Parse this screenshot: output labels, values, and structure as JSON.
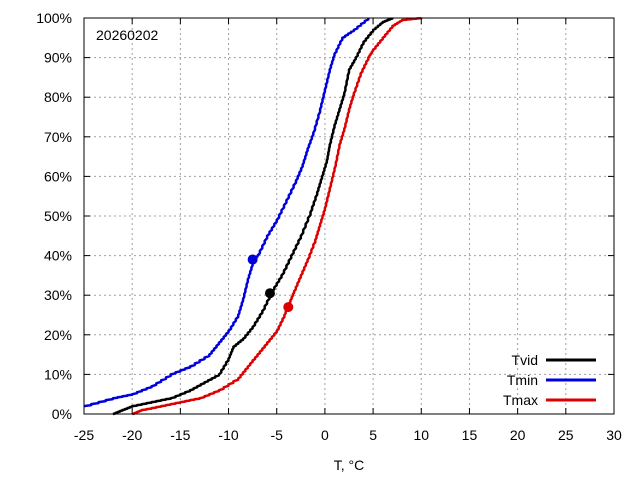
{
  "chart_data": {
    "type": "line",
    "annotation": "20260202",
    "xlabel": "T, °C",
    "ylabel": "",
    "xlim": [
      -25,
      30
    ],
    "ylim": [
      0,
      100
    ],
    "xticks": [
      "-25",
      "-20",
      "-15",
      "-10",
      "-5",
      "0",
      "5",
      "10",
      "15",
      "20",
      "25",
      "30"
    ],
    "yticks": [
      "0%",
      "10%",
      "20%",
      "30%",
      "40%",
      "50%",
      "60%",
      "70%",
      "80%",
      "90%",
      "100%"
    ],
    "grid": true,
    "legend_position": "bottom-right",
    "series": [
      {
        "name": "Tvid",
        "color": "#000000",
        "points": [
          [
            -22,
            0
          ],
          [
            -21,
            1
          ],
          [
            -20,
            2
          ],
          [
            -18,
            3
          ],
          [
            -16,
            4
          ],
          [
            -14,
            6
          ],
          [
            -12.5,
            8
          ],
          [
            -11,
            10
          ],
          [
            -10,
            14
          ],
          [
            -9.5,
            17
          ],
          [
            -8.5,
            19
          ],
          [
            -7.5,
            22
          ],
          [
            -6.5,
            26
          ],
          [
            -5.5,
            31
          ],
          [
            -4.5,
            35
          ],
          [
            -3.5,
            40
          ],
          [
            -2.5,
            45
          ],
          [
            -1.5,
            51
          ],
          [
            -0.8,
            56
          ],
          [
            -0.3,
            60
          ],
          [
            0.2,
            64
          ],
          [
            0.5,
            68
          ],
          [
            1,
            73
          ],
          [
            1.5,
            77
          ],
          [
            2,
            81
          ],
          [
            2.5,
            87
          ],
          [
            3.2,
            90
          ],
          [
            4,
            94
          ],
          [
            5,
            97
          ],
          [
            6,
            99
          ],
          [
            7,
            100
          ]
        ],
        "marker": [
          -5.7,
          30.5
        ]
      },
      {
        "name": "Tmin",
        "color": "#0000dd",
        "points": [
          [
            -25,
            2
          ],
          [
            -22,
            4
          ],
          [
            -20,
            5
          ],
          [
            -18,
            7
          ],
          [
            -16,
            10
          ],
          [
            -14,
            12
          ],
          [
            -12,
            15
          ],
          [
            -11,
            18
          ],
          [
            -10,
            21
          ],
          [
            -9,
            25
          ],
          [
            -8.5,
            29
          ],
          [
            -8,
            34
          ],
          [
            -7.5,
            38
          ],
          [
            -7,
            40
          ],
          [
            -6,
            45
          ],
          [
            -5,
            49
          ],
          [
            -4,
            54
          ],
          [
            -3,
            59
          ],
          [
            -2.3,
            63
          ],
          [
            -1.8,
            67
          ],
          [
            -1.2,
            71
          ],
          [
            -0.5,
            77
          ],
          [
            0,
            82
          ],
          [
            0.5,
            87
          ],
          [
            1,
            91
          ],
          [
            1.8,
            95
          ],
          [
            3,
            97
          ],
          [
            4.5,
            100
          ]
        ],
        "marker": [
          -7.5,
          39
        ]
      },
      {
        "name": "Tmax",
        "color": "#dd0000",
        "points": [
          [
            -20,
            0
          ],
          [
            -19,
            1
          ],
          [
            -17,
            2
          ],
          [
            -15,
            3
          ],
          [
            -13,
            4
          ],
          [
            -11,
            6
          ],
          [
            -9,
            9
          ],
          [
            -8,
            12
          ],
          [
            -7,
            15
          ],
          [
            -6,
            18
          ],
          [
            -5,
            21
          ],
          [
            -4.2,
            25
          ],
          [
            -3.7,
            28
          ],
          [
            -3.2,
            31
          ],
          [
            -2.5,
            35
          ],
          [
            -1.8,
            39
          ],
          [
            -1,
            44
          ],
          [
            -0.5,
            48
          ],
          [
            0,
            52
          ],
          [
            0.5,
            57
          ],
          [
            1,
            62
          ],
          [
            1.5,
            68
          ],
          [
            2,
            72
          ],
          [
            2.5,
            77
          ],
          [
            3,
            81
          ],
          [
            3.7,
            86
          ],
          [
            4.5,
            90
          ],
          [
            5,
            92
          ],
          [
            6,
            95
          ],
          [
            7,
            98
          ],
          [
            8,
            99.5
          ],
          [
            10,
            100
          ]
        ],
        "marker": [
          -3.8,
          27
        ]
      }
    ]
  }
}
